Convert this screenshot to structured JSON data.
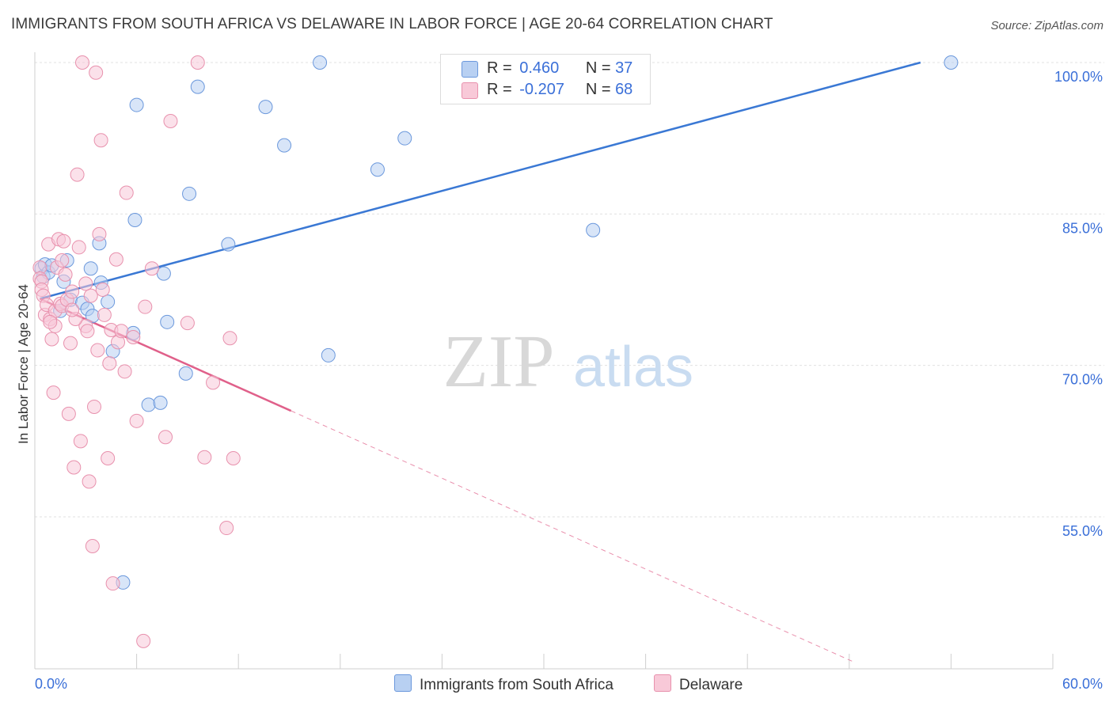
{
  "title": "IMMIGRANTS FROM SOUTH AFRICA VS DELAWARE IN LABOR FORCE | AGE 20-64 CORRELATION CHART",
  "source": "Source: ZipAtlas.com",
  "watermark": {
    "zip": "ZIP",
    "atlas": "atlas"
  },
  "legend": {
    "r_label": "R =",
    "n_label": "N =",
    "series1": {
      "r": "0.460",
      "n": "37"
    },
    "series2": {
      "r": "-0.207",
      "n": "68"
    }
  },
  "colors": {
    "blue_fill": "#b8d0f2",
    "blue_stroke": "#6b98dc",
    "blue_line": "#3a78d4",
    "pink_fill": "#f8c9d8",
    "pink_stroke": "#e891ad",
    "pink_line": "#e0608a",
    "grid": "#e0e0e0",
    "axis_text": "#3a6fd8"
  },
  "chart_data": {
    "type": "scatter",
    "xlabel": "",
    "ylabel": "In Labor Force | Age 20-64",
    "xlim": [
      0,
      60
    ],
    "ylim": [
      40,
      102
    ],
    "x_tick_labels": {
      "min": "0.0%",
      "max": "60.0%"
    },
    "y_ticks": [
      {
        "value": 100,
        "label": "100.0%"
      },
      {
        "value": 85,
        "label": "85.0%"
      },
      {
        "value": 70,
        "label": "70.0%"
      },
      {
        "value": 55,
        "label": "55.0%"
      }
    ],
    "series": [
      {
        "name": "Immigrants from South Africa",
        "color": "blue",
        "r": 0.46,
        "n": 37,
        "trend": {
          "x0": 0.3,
          "y0": 76.6,
          "x1": 52.2,
          "y1": 100.0,
          "dashed_to": null
        },
        "points": [
          [
            0.4,
            79.6
          ],
          [
            0.5,
            78.8
          ],
          [
            0.6,
            80.0
          ],
          [
            0.8,
            79.2
          ],
          [
            1.0,
            79.9
          ],
          [
            1.5,
            75.4
          ],
          [
            1.7,
            78.3
          ],
          [
            1.9,
            80.4
          ],
          [
            2.1,
            76.5
          ],
          [
            2.8,
            76.2
          ],
          [
            3.1,
            75.6
          ],
          [
            3.3,
            79.6
          ],
          [
            3.4,
            74.9
          ],
          [
            3.8,
            82.1
          ],
          [
            3.9,
            78.2
          ],
          [
            4.3,
            76.3
          ],
          [
            4.6,
            71.4
          ],
          [
            5.2,
            48.5
          ],
          [
            5.8,
            73.2
          ],
          [
            5.9,
            84.4
          ],
          [
            6.0,
            95.8
          ],
          [
            6.7,
            66.1
          ],
          [
            7.4,
            66.3
          ],
          [
            7.6,
            79.1
          ],
          [
            7.8,
            74.3
          ],
          [
            8.9,
            69.2
          ],
          [
            9.1,
            87.0
          ],
          [
            9.6,
            97.6
          ],
          [
            11.4,
            82.0
          ],
          [
            13.6,
            95.6
          ],
          [
            14.7,
            91.8
          ],
          [
            16.8,
            100.0
          ],
          [
            17.3,
            71.0
          ],
          [
            20.2,
            89.4
          ],
          [
            21.8,
            92.5
          ],
          [
            32.9,
            83.4
          ],
          [
            54.0,
            100.0
          ]
        ]
      },
      {
        "name": "Delaware",
        "color": "pink",
        "r": -0.207,
        "n": 68,
        "trend": {
          "x0": 0.3,
          "y0": 76.6,
          "x1": 15.1,
          "y1": 65.5,
          "dash_x1": 48.3,
          "dash_y1": 40.6
        },
        "points": [
          [
            0.3,
            79.7
          ],
          [
            0.3,
            78.6
          ],
          [
            0.4,
            78.3
          ],
          [
            0.4,
            77.5
          ],
          [
            0.5,
            76.9
          ],
          [
            0.6,
            75.0
          ],
          [
            0.7,
            76.0
          ],
          [
            0.8,
            82.0
          ],
          [
            0.9,
            74.6
          ],
          [
            1.0,
            72.6
          ],
          [
            1.1,
            67.3
          ],
          [
            1.2,
            75.4
          ],
          [
            1.3,
            79.7
          ],
          [
            1.4,
            82.5
          ],
          [
            1.5,
            76.1
          ],
          [
            1.6,
            75.9
          ],
          [
            1.7,
            82.3
          ],
          [
            1.8,
            79.0
          ],
          [
            1.9,
            76.5
          ],
          [
            2.0,
            65.2
          ],
          [
            2.1,
            72.2
          ],
          [
            2.2,
            77.3
          ],
          [
            2.3,
            59.9
          ],
          [
            2.5,
            88.9
          ],
          [
            2.6,
            81.7
          ],
          [
            2.7,
            62.5
          ],
          [
            2.8,
            100.0
          ],
          [
            3.0,
            73.9
          ],
          [
            3.1,
            73.4
          ],
          [
            3.2,
            58.5
          ],
          [
            3.3,
            76.9
          ],
          [
            3.4,
            52.1
          ],
          [
            3.5,
            65.9
          ],
          [
            3.6,
            99.0
          ],
          [
            3.7,
            71.5
          ],
          [
            3.8,
            83.0
          ],
          [
            3.9,
            92.3
          ],
          [
            4.0,
            77.5
          ],
          [
            4.1,
            75.0
          ],
          [
            4.3,
            60.8
          ],
          [
            4.4,
            70.2
          ],
          [
            4.5,
            73.5
          ],
          [
            4.6,
            48.4
          ],
          [
            4.8,
            80.5
          ],
          [
            4.9,
            72.3
          ],
          [
            5.1,
            73.4
          ],
          [
            5.3,
            69.4
          ],
          [
            5.4,
            87.1
          ],
          [
            5.8,
            72.8
          ],
          [
            6.0,
            64.5
          ],
          [
            6.4,
            42.7
          ],
          [
            6.5,
            75.8
          ],
          [
            6.9,
            79.6
          ],
          [
            7.7,
            62.9
          ],
          [
            8.0,
            94.2
          ],
          [
            9.0,
            74.2
          ],
          [
            9.6,
            100.0
          ],
          [
            10.0,
            60.9
          ],
          [
            10.5,
            68.3
          ],
          [
            11.3,
            53.9
          ],
          [
            11.5,
            72.7
          ],
          [
            11.7,
            60.8
          ],
          [
            1.2,
            73.9
          ],
          [
            2.4,
            74.6
          ],
          [
            3.0,
            78.1
          ],
          [
            1.6,
            80.4
          ],
          [
            0.9,
            74.3
          ],
          [
            2.2,
            75.5
          ]
        ]
      }
    ]
  },
  "bottom_legend": {
    "series1_label": "Immigrants from South Africa",
    "series2_label": "Delaware"
  }
}
